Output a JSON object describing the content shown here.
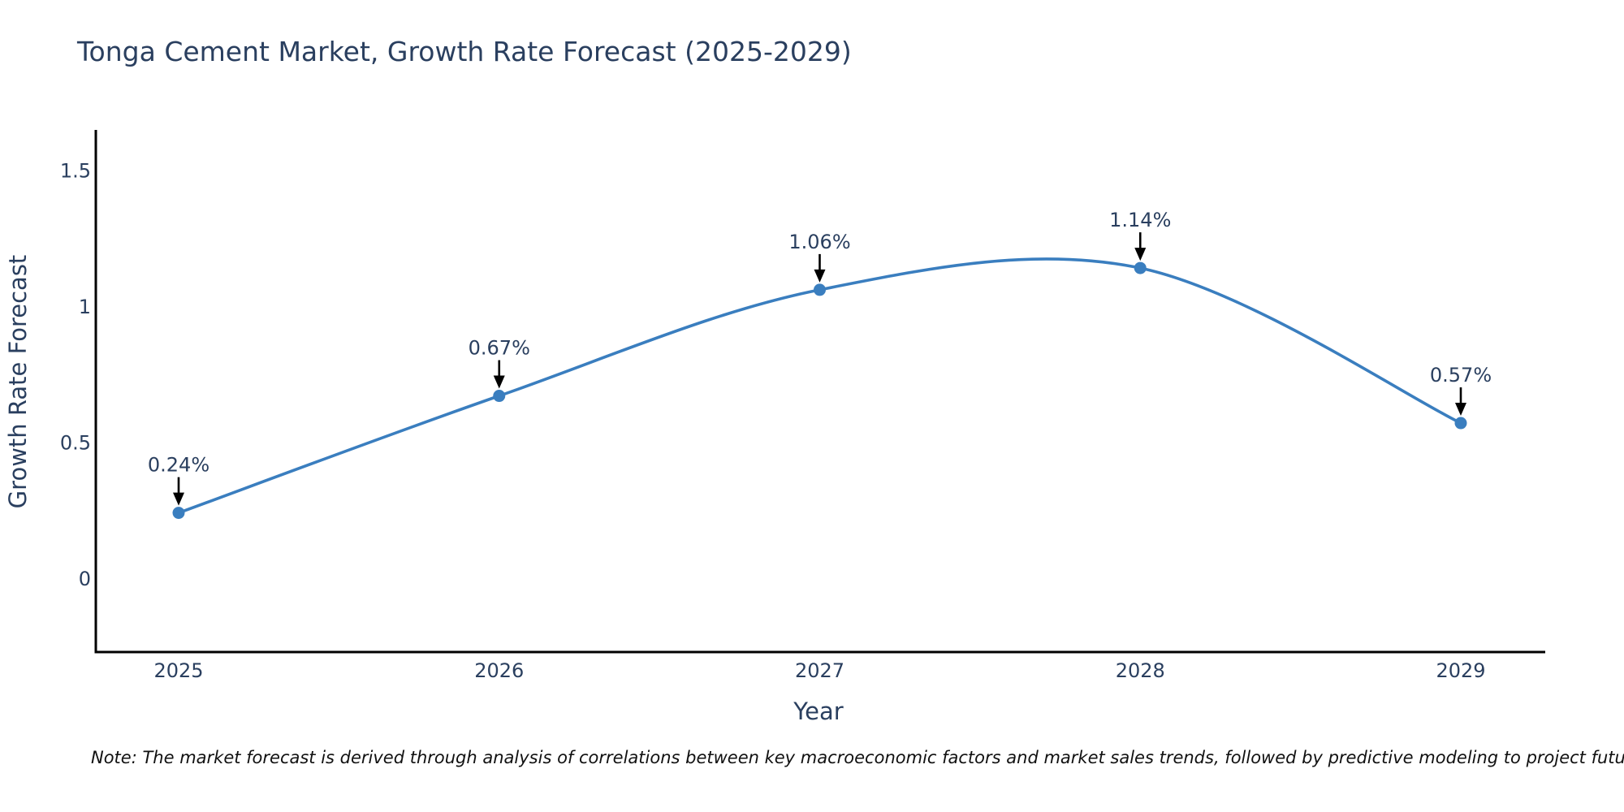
{
  "chart_data": {
    "type": "line",
    "title": "Tonga Cement Market, Growth Rate Forecast (2025-2029)",
    "xlabel": "Year",
    "ylabel": "Growth Rate Forecast",
    "categories": [
      2025,
      2026,
      2027,
      2028,
      2029
    ],
    "series": [
      {
        "name": "Growth Rate Forecast",
        "values": [
          0.24,
          0.67,
          1.06,
          1.14,
          0.57
        ],
        "point_labels": [
          "0.24%",
          "0.67%",
          "1.06%",
          "1.14%",
          "0.57%"
        ]
      }
    ],
    "y_ticks": [
      0,
      0.5,
      1,
      1.5
    ],
    "ylim": [
      -0.27,
      1.64
    ],
    "line_shape": "spline",
    "grid": false,
    "legend": "none",
    "annotations_have_arrows": true,
    "note": "Note: The market forecast is derived through analysis of correlations between key macroeconomic factors and market sales trends, followed by predictive modeling to project future sales",
    "colors": {
      "line": "#3a7ebf",
      "marker": "#3a7ebf",
      "axis": "#000000",
      "text": "#2a3f5f",
      "arrow": "#000000",
      "note_text": "#111111",
      "background": "#ffffff"
    }
  }
}
